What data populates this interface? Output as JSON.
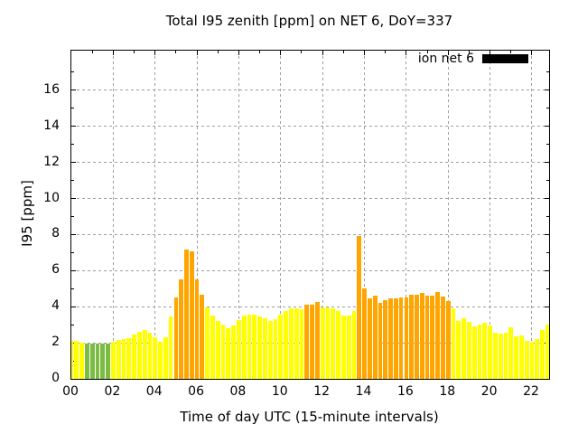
{
  "chart_data": {
    "type": "bar",
    "title": "Total I95 zenith [ppm] on NET 6, DoY=337",
    "xlabel": "Time of day UTC (15-minute intervals)",
    "ylabel": "I95 [ppm]",
    "legend": {
      "label": "ion net 6",
      "swatch_color": "#000000",
      "position": "top-right-inside"
    },
    "grid": true,
    "interval_minutes": 15,
    "x_tick_labels": [
      "00",
      "02",
      "04",
      "06",
      "08",
      "10",
      "12",
      "14",
      "16",
      "18",
      "20",
      "22"
    ],
    "y_ticks": [
      0,
      2,
      4,
      6,
      8,
      10,
      12,
      14,
      16
    ],
    "ylim": [
      0,
      18.2
    ],
    "xlim_hours": [
      0,
      22.82
    ],
    "palette": {
      "green": "#7cbb44",
      "yellow": "#ffff00",
      "orange": "#ffa500"
    },
    "bars": [
      {
        "time": "00:00",
        "value": 2.1,
        "level": "yellow"
      },
      {
        "time": "00:15",
        "value": 2.1,
        "level": "yellow"
      },
      {
        "time": "00:30",
        "value": 2.0,
        "level": "yellow"
      },
      {
        "time": "00:45",
        "value": 1.95,
        "level": "green"
      },
      {
        "time": "01:00",
        "value": 1.95,
        "level": "green"
      },
      {
        "time": "01:15",
        "value": 1.95,
        "level": "green"
      },
      {
        "time": "01:30",
        "value": 1.95,
        "level": "green"
      },
      {
        "time": "01:45",
        "value": 1.95,
        "level": "green"
      },
      {
        "time": "02:00",
        "value": 2.05,
        "level": "yellow"
      },
      {
        "time": "02:15",
        "value": 2.15,
        "level": "yellow"
      },
      {
        "time": "02:30",
        "value": 2.2,
        "level": "yellow"
      },
      {
        "time": "02:45",
        "value": 2.25,
        "level": "yellow"
      },
      {
        "time": "03:00",
        "value": 2.45,
        "level": "yellow"
      },
      {
        "time": "03:15",
        "value": 2.6,
        "level": "yellow"
      },
      {
        "time": "03:30",
        "value": 2.7,
        "level": "yellow"
      },
      {
        "time": "03:45",
        "value": 2.55,
        "level": "yellow"
      },
      {
        "time": "04:00",
        "value": 2.3,
        "level": "yellow"
      },
      {
        "time": "04:15",
        "value": 2.05,
        "level": "yellow"
      },
      {
        "time": "04:30",
        "value": 2.3,
        "level": "yellow"
      },
      {
        "time": "04:45",
        "value": 3.45,
        "level": "yellow"
      },
      {
        "time": "05:00",
        "value": 4.5,
        "level": "orange"
      },
      {
        "time": "05:15",
        "value": 5.5,
        "level": "orange"
      },
      {
        "time": "05:30",
        "value": 7.15,
        "level": "orange"
      },
      {
        "time": "05:45",
        "value": 7.05,
        "level": "orange"
      },
      {
        "time": "06:00",
        "value": 5.5,
        "level": "orange"
      },
      {
        "time": "06:15",
        "value": 4.65,
        "level": "orange"
      },
      {
        "time": "06:30",
        "value": 3.95,
        "level": "yellow"
      },
      {
        "time": "06:45",
        "value": 3.5,
        "level": "yellow"
      },
      {
        "time": "07:00",
        "value": 3.2,
        "level": "yellow"
      },
      {
        "time": "07:15",
        "value": 3.0,
        "level": "yellow"
      },
      {
        "time": "07:30",
        "value": 2.8,
        "level": "yellow"
      },
      {
        "time": "07:45",
        "value": 2.95,
        "level": "yellow"
      },
      {
        "time": "08:00",
        "value": 3.25,
        "level": "yellow"
      },
      {
        "time": "08:15",
        "value": 3.5,
        "level": "yellow"
      },
      {
        "time": "08:30",
        "value": 3.55,
        "level": "yellow"
      },
      {
        "time": "08:45",
        "value": 3.55,
        "level": "yellow"
      },
      {
        "time": "09:00",
        "value": 3.45,
        "level": "yellow"
      },
      {
        "time": "09:15",
        "value": 3.35,
        "level": "yellow"
      },
      {
        "time": "09:30",
        "value": 3.2,
        "level": "yellow"
      },
      {
        "time": "09:45",
        "value": 3.3,
        "level": "yellow"
      },
      {
        "time": "10:00",
        "value": 3.55,
        "level": "yellow"
      },
      {
        "time": "10:15",
        "value": 3.75,
        "level": "yellow"
      },
      {
        "time": "10:30",
        "value": 3.9,
        "level": "yellow"
      },
      {
        "time": "10:45",
        "value": 3.9,
        "level": "yellow"
      },
      {
        "time": "11:00",
        "value": 3.85,
        "level": "yellow"
      },
      {
        "time": "11:15",
        "value": 4.1,
        "level": "orange"
      },
      {
        "time": "11:30",
        "value": 4.1,
        "level": "orange"
      },
      {
        "time": "11:45",
        "value": 4.25,
        "level": "orange"
      },
      {
        "time": "12:00",
        "value": 3.95,
        "level": "yellow"
      },
      {
        "time": "12:15",
        "value": 3.95,
        "level": "yellow"
      },
      {
        "time": "12:30",
        "value": 3.9,
        "level": "yellow"
      },
      {
        "time": "12:45",
        "value": 3.75,
        "level": "yellow"
      },
      {
        "time": "13:00",
        "value": 3.5,
        "level": "yellow"
      },
      {
        "time": "13:15",
        "value": 3.5,
        "level": "yellow"
      },
      {
        "time": "13:30",
        "value": 3.75,
        "level": "yellow"
      },
      {
        "time": "13:45",
        "value": 7.9,
        "level": "orange"
      },
      {
        "time": "14:00",
        "value": 5.0,
        "level": "orange"
      },
      {
        "time": "14:15",
        "value": 4.45,
        "level": "orange"
      },
      {
        "time": "14:30",
        "value": 4.6,
        "level": "orange"
      },
      {
        "time": "14:45",
        "value": 4.2,
        "level": "orange"
      },
      {
        "time": "15:00",
        "value": 4.35,
        "level": "orange"
      },
      {
        "time": "15:15",
        "value": 4.45,
        "level": "orange"
      },
      {
        "time": "15:30",
        "value": 4.45,
        "level": "orange"
      },
      {
        "time": "15:45",
        "value": 4.5,
        "level": "orange"
      },
      {
        "time": "16:00",
        "value": 4.5,
        "level": "orange"
      },
      {
        "time": "16:15",
        "value": 4.65,
        "level": "orange"
      },
      {
        "time": "16:30",
        "value": 4.65,
        "level": "orange"
      },
      {
        "time": "16:45",
        "value": 4.75,
        "level": "orange"
      },
      {
        "time": "17:00",
        "value": 4.6,
        "level": "orange"
      },
      {
        "time": "17:15",
        "value": 4.6,
        "level": "orange"
      },
      {
        "time": "17:30",
        "value": 4.8,
        "level": "orange"
      },
      {
        "time": "17:45",
        "value": 4.55,
        "level": "orange"
      },
      {
        "time": "18:00",
        "value": 4.3,
        "level": "orange"
      },
      {
        "time": "18:15",
        "value": 3.9,
        "level": "yellow"
      },
      {
        "time": "18:30",
        "value": 3.2,
        "level": "yellow"
      },
      {
        "time": "18:45",
        "value": 3.35,
        "level": "yellow"
      },
      {
        "time": "19:00",
        "value": 3.15,
        "level": "yellow"
      },
      {
        "time": "19:15",
        "value": 2.9,
        "level": "yellow"
      },
      {
        "time": "19:30",
        "value": 3.0,
        "level": "yellow"
      },
      {
        "time": "19:45",
        "value": 3.1,
        "level": "yellow"
      },
      {
        "time": "20:00",
        "value": 2.95,
        "level": "yellow"
      },
      {
        "time": "20:15",
        "value": 2.55,
        "level": "yellow"
      },
      {
        "time": "20:30",
        "value": 2.5,
        "level": "yellow"
      },
      {
        "time": "20:45",
        "value": 2.55,
        "level": "yellow"
      },
      {
        "time": "21:00",
        "value": 2.85,
        "level": "yellow"
      },
      {
        "time": "21:15",
        "value": 2.35,
        "level": "yellow"
      },
      {
        "time": "21:30",
        "value": 2.4,
        "level": "yellow"
      },
      {
        "time": "21:45",
        "value": 2.1,
        "level": "yellow"
      },
      {
        "time": "22:00",
        "value": 2.05,
        "level": "yellow"
      },
      {
        "time": "22:15",
        "value": 2.2,
        "level": "yellow"
      },
      {
        "time": "22:30",
        "value": 2.7,
        "level": "yellow"
      },
      {
        "time": "22:45",
        "value": 3.0,
        "level": "yellow"
      }
    ]
  }
}
